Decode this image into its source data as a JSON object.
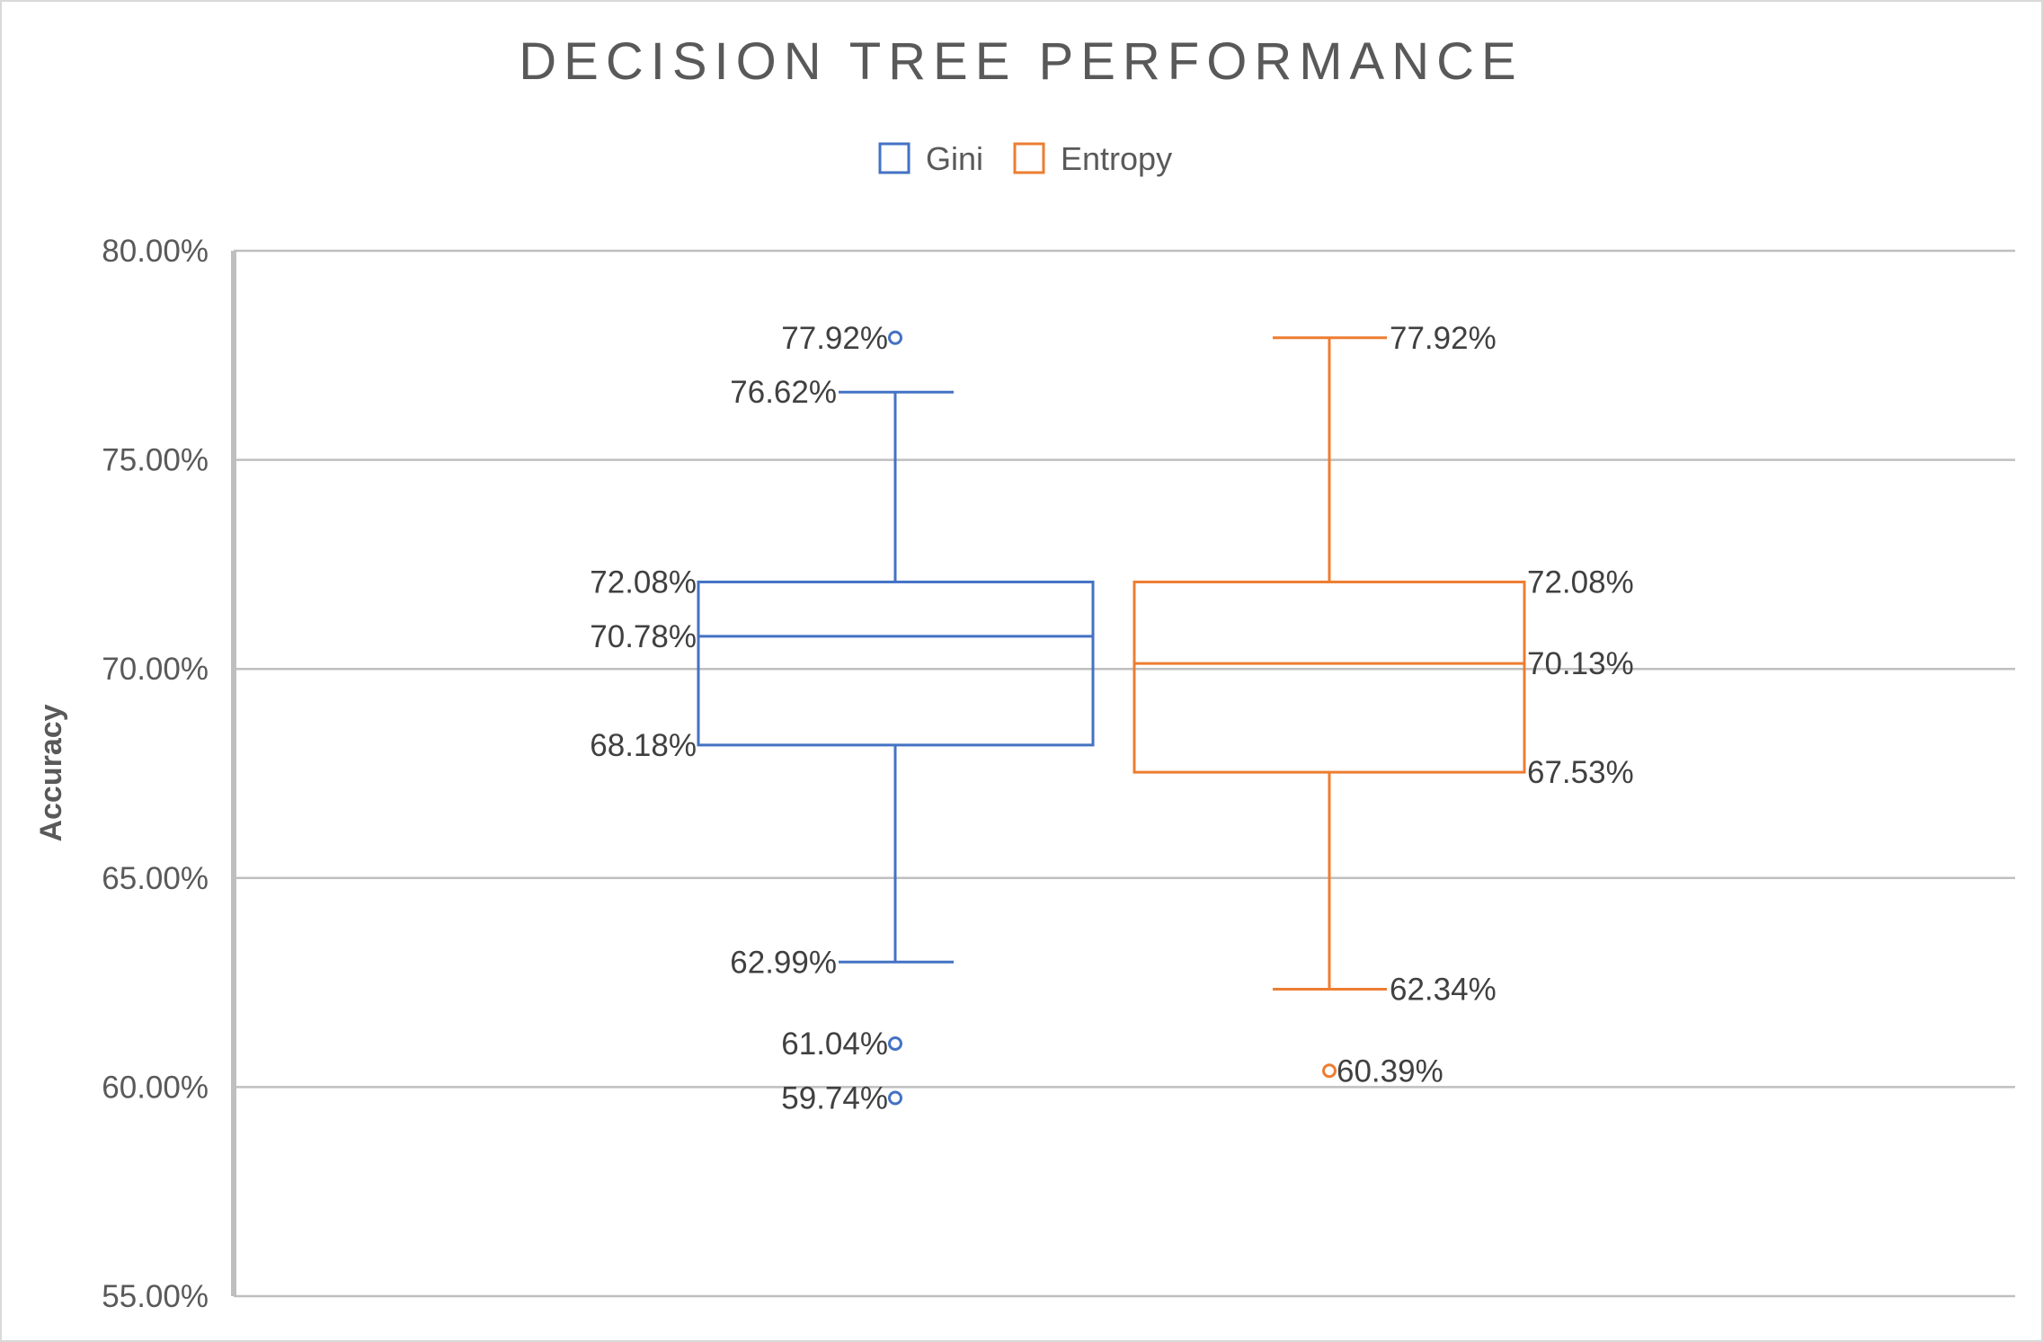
{
  "chart_data": {
    "type": "box",
    "title": "DECISION TREE PERFORMANCE",
    "xlabel": "",
    "ylabel": "Accuracy",
    "ylim": [
      0.55,
      0.8
    ],
    "yticks": [
      0.55,
      0.6,
      0.65,
      0.7,
      0.75,
      0.8
    ],
    "ytick_labels": [
      "55.00%",
      "60.00%",
      "65.00%",
      "70.00%",
      "75.00%",
      "80.00%"
    ],
    "grid": true,
    "legend_position": "top",
    "series": [
      {
        "name": "Gini",
        "color": "#4472C4",
        "whisker_high": 0.7662,
        "q3": 0.7208,
        "median": 0.7078,
        "q1": 0.6818,
        "whisker_low": 0.6299,
        "outliers": [
          0.7792,
          0.6104,
          0.5974
        ],
        "labels": {
          "whisker_high": "76.62%",
          "q3": "72.08%",
          "median": "70.78%",
          "q1": "68.18%",
          "whisker_low": "62.99%",
          "outliers": [
            "77.92%",
            "61.04%",
            "59.74%"
          ]
        }
      },
      {
        "name": "Entropy",
        "color": "#ED7D31",
        "whisker_high": 0.7792,
        "q3": 0.7208,
        "median": 0.7013,
        "q1": 0.6753,
        "whisker_low": 0.6234,
        "outliers": [
          0.6039
        ],
        "labels": {
          "whisker_high": "77.92%",
          "q3": "72.08%",
          "median": "70.13%",
          "q1": "67.53%",
          "whisker_low": "62.34%",
          "outliers": [
            "60.39%"
          ]
        }
      }
    ]
  }
}
